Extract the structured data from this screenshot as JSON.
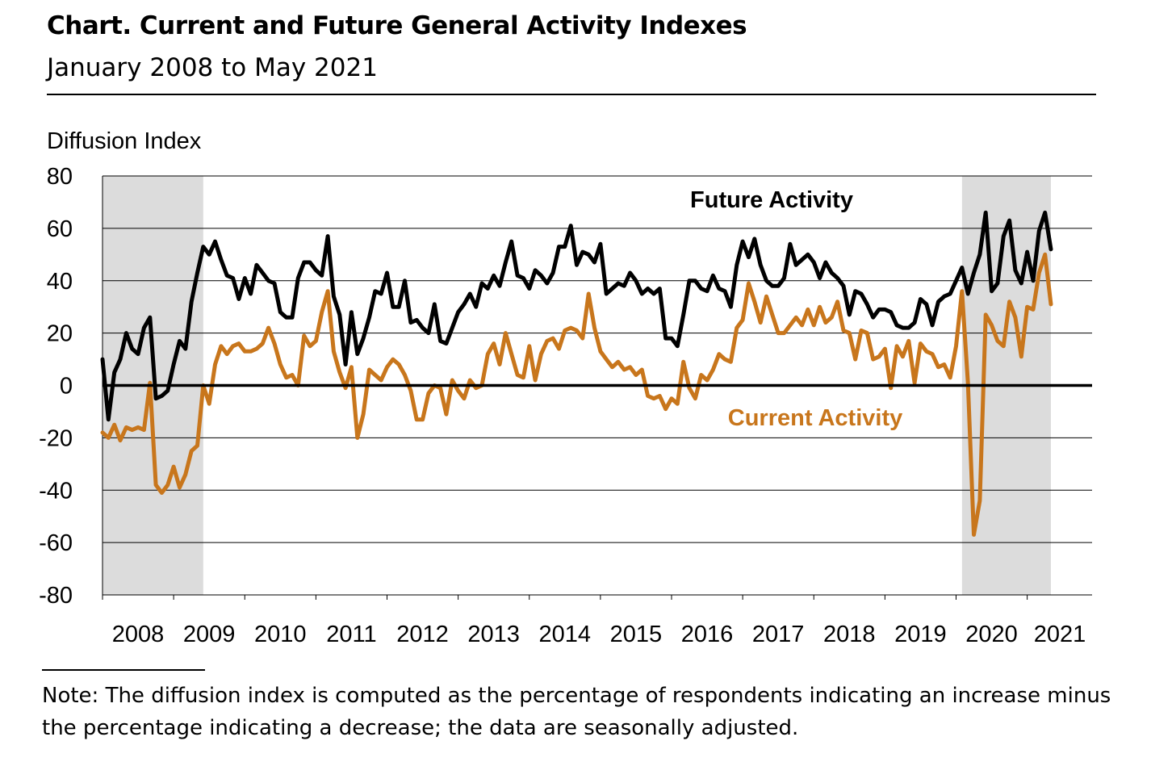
{
  "title": "Chart. Current and Future General Activity Indexes",
  "subtitle": "January 2008 to May 2021",
  "note": "Note: The diffusion index is computed as the percentage of respondents indicating an increase minus the percentage indicating a decrease; the data are seasonally adjusted.",
  "chart_data": {
    "type": "line",
    "ylabel": "Diffusion Index",
    "ylim": [
      -80,
      80
    ],
    "y_ticks": [
      80,
      60,
      40,
      20,
      0,
      -20,
      -40,
      -60,
      -80
    ],
    "x_ticks": [
      "2008",
      "2009",
      "2010",
      "2011",
      "2012",
      "2013",
      "2014",
      "2015",
      "2016",
      "2017",
      "2018",
      "2019",
      "2020",
      "2021"
    ],
    "x_start": "2008-01",
    "x_end": "2021-05",
    "grid": true,
    "recessions": [
      {
        "start": "2008-01",
        "end": "2009-06"
      },
      {
        "start": "2020-02",
        "end": "2021-05"
      }
    ],
    "series": [
      {
        "name": "Future Activity",
        "color": "#000000",
        "values": [
          10,
          -13,
          5,
          10,
          20,
          14,
          12,
          22,
          26,
          -5,
          -4,
          -2,
          8,
          17,
          14,
          32,
          43,
          53,
          50,
          55,
          48,
          42,
          41,
          33,
          41,
          35,
          46,
          43,
          40,
          39,
          28,
          26,
          26,
          41,
          47,
          47,
          44,
          42,
          57,
          34,
          27,
          8,
          28,
          12,
          18,
          26,
          36,
          35,
          43,
          30,
          30,
          40,
          24,
          25,
          22,
          20,
          31,
          17,
          16,
          22,
          28,
          31,
          35,
          30,
          39,
          37,
          42,
          38,
          47,
          55,
          42,
          41,
          37,
          44,
          42,
          39,
          43,
          53,
          53,
          61,
          46,
          51,
          50,
          47,
          54,
          35,
          37,
          39,
          38,
          43,
          40,
          35,
          37,
          35,
          37,
          18,
          18,
          15,
          27,
          40,
          40,
          37,
          36,
          42,
          37,
          36,
          30,
          46,
          55,
          49,
          56,
          46,
          40,
          38,
          38,
          41,
          54,
          46,
          48,
          50,
          47,
          41,
          47,
          43,
          41,
          38,
          27,
          36,
          35,
          31,
          26,
          29,
          29,
          28,
          23,
          22,
          22,
          24,
          33,
          31,
          23,
          32,
          34,
          35,
          40,
          45,
          35,
          43,
          50,
          66,
          36,
          39,
          57,
          63,
          44,
          39,
          51,
          40,
          59,
          66,
          52
        ]
      },
      {
        "name": "Current Activity",
        "color": "#C8761C",
        "values": [
          -18,
          -20,
          -15,
          -21,
          -16,
          -17,
          -16,
          -17,
          1,
          -38,
          -41,
          -38,
          -31,
          -39,
          -34,
          -25,
          -23,
          0,
          -7,
          8,
          15,
          12,
          15,
          16,
          13,
          13,
          14,
          16,
          22,
          16,
          8,
          3,
          4,
          0,
          19,
          15,
          17,
          28,
          36,
          13,
          5,
          -1,
          7,
          -20,
          -11,
          6,
          4,
          2,
          7,
          10,
          8,
          4,
          -2,
          -13,
          -13,
          -3,
          0,
          -1,
          -11,
          2,
          -2,
          -5,
          2,
          -1,
          0,
          12,
          16,
          8,
          20,
          12,
          4,
          3,
          15,
          2,
          12,
          17,
          18,
          14,
          21,
          22,
          21,
          18,
          35,
          22,
          13,
          10,
          7,
          9,
          6,
          7,
          4,
          6,
          -4,
          -5,
          -4,
          -9,
          -5,
          -7,
          9,
          -1,
          -5,
          4,
          2,
          6,
          12,
          10,
          9,
          22,
          25,
          39,
          32,
          24,
          34,
          27,
          20,
          20,
          23,
          26,
          23,
          29,
          23,
          30,
          24,
          26,
          32,
          21,
          20,
          10,
          21,
          20,
          10,
          11,
          14,
          -1,
          15,
          11,
          17,
          1,
          16,
          13,
          12,
          7,
          8,
          3,
          15,
          36,
          1,
          -57,
          -44,
          27,
          23,
          17,
          15,
          32,
          26,
          11,
          30,
          29,
          43,
          50,
          31
        ]
      }
    ]
  }
}
